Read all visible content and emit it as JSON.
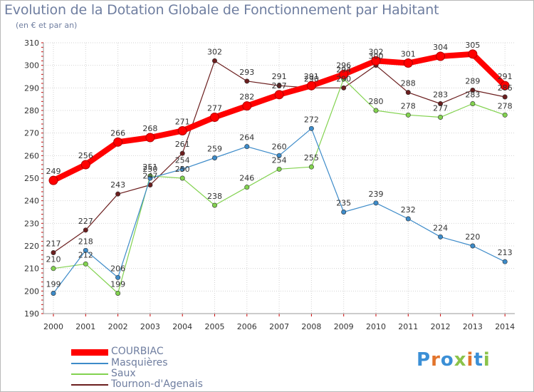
{
  "header": {
    "title": "Evolution de la Dotation Globale de Fonctionnement par Habitant",
    "subtitle": "(en € et par an)"
  },
  "logo": {
    "text": "Proxiti",
    "colors": [
      "#3b8fd6",
      "#e2742c",
      "#3b8fd6",
      "#8bc34a",
      "#e2742c",
      "#3b8fd6",
      "#8bc34a"
    ]
  },
  "chart_data": {
    "type": "line",
    "title": "Evolution de la Dotation Globale de Fonctionnement par Habitant",
    "ylabel": "(en € et par an)",
    "xlabel": "",
    "ylim": [
      190,
      310
    ],
    "yticks": [
      190,
      200,
      210,
      220,
      230,
      240,
      250,
      260,
      270,
      280,
      290,
      300,
      310
    ],
    "categories": [
      "2000",
      "2001",
      "2002",
      "2003",
      "2004",
      "2005",
      "2006",
      "2007",
      "2008",
      "2009",
      "2010",
      "2011",
      "2012",
      "2013",
      "2014"
    ],
    "grid": true,
    "legend_position": "bottom-left",
    "series": [
      {
        "name": "COURBIAC",
        "color": "#ff0000",
        "style": "thick",
        "values": [
          249,
          256,
          266,
          268,
          271,
          277,
          282,
          287,
          291,
          296,
          302,
          301,
          304,
          305,
          291
        ],
        "labels": [
          "249",
          "256",
          "266",
          "268",
          "271",
          "277",
          "282",
          "287",
          "291",
          "296",
          "302",
          "301",
          "304",
          "305",
          "291"
        ]
      },
      {
        "name": "Masquières",
        "color": "#3d8bc9",
        "style": "thin",
        "values": [
          199,
          218,
          206,
          250,
          254,
          259,
          264,
          260,
          272,
          235,
          239,
          232,
          224,
          220,
          213
        ],
        "labels": [
          "199",
          "218",
          "206",
          "250",
          "254",
          "259",
          "264",
          "260",
          "272",
          "235",
          "239",
          "232",
          "224",
          "220",
          "213"
        ]
      },
      {
        "name": "Saux",
        "color": "#82d24f",
        "style": "thin",
        "values": [
          210,
          212,
          199,
          251,
          250,
          238,
          246,
          254,
          255,
          294,
          280,
          278,
          277,
          283,
          278
        ],
        "labels": [
          "210",
          "212",
          "199",
          "251",
          "250",
          "238",
          "246",
          "254",
          "255",
          "294",
          "280",
          "278",
          "277",
          "283",
          "278"
        ]
      },
      {
        "name": "Tournon-d'Agenais",
        "color": "#6b1e1e",
        "style": "thin",
        "values": [
          217,
          227,
          243,
          247,
          261,
          302,
          293,
          291,
          290,
          290,
          300,
          288,
          283,
          289,
          286
        ],
        "labels": [
          "217",
          "227",
          "243",
          "247",
          "261",
          "302",
          "293",
          "291",
          "290",
          "290",
          "300",
          "288",
          "283",
          "289",
          "286"
        ]
      }
    ]
  }
}
